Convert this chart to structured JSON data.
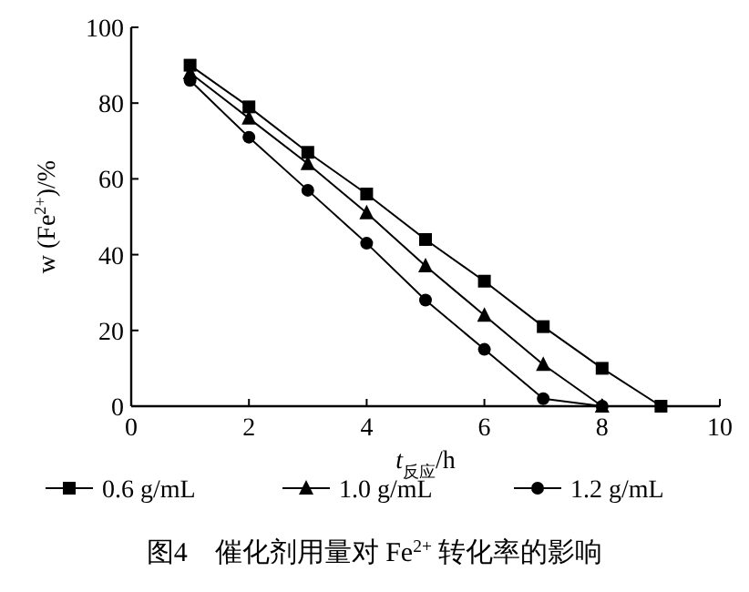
{
  "chart_data": {
    "type": "line",
    "title": "图4　催化剂用量对 Fe$^{2+}$ 转化率的影响",
    "xlabel": "t$_{反应}$/h",
    "ylabel": "w (Fe$^{2+}$)/%",
    "xlim": [
      0,
      10
    ],
    "xticks": [
      0,
      2,
      4,
      6,
      8,
      10
    ],
    "ylim": [
      0,
      100
    ],
    "yticks": [
      0,
      20,
      40,
      60,
      80,
      100
    ],
    "grid": false,
    "legend": "bottom",
    "series": [
      {
        "name": "0.6 g/mL",
        "color": "#000000",
        "marker": "square",
        "x": [
          1,
          2,
          3,
          4,
          5,
          6,
          7,
          8,
          9
        ],
        "values": [
          90,
          79,
          67,
          56,
          44,
          33,
          21,
          10,
          0
        ]
      },
      {
        "name": "1.0 g/mL",
        "color": "#000000",
        "marker": "triangle",
        "x": [
          1,
          2,
          3,
          4,
          5,
          6,
          7,
          8
        ],
        "values": [
          88,
          76,
          64,
          51,
          37,
          24,
          11,
          0
        ]
      },
      {
        "name": "1.2 g/mL",
        "color": "#000000",
        "marker": "circle",
        "x": [
          1,
          2,
          3,
          4,
          5,
          6,
          7,
          8
        ],
        "values": [
          86,
          71,
          57,
          43,
          28,
          15,
          2,
          0
        ]
      }
    ]
  }
}
